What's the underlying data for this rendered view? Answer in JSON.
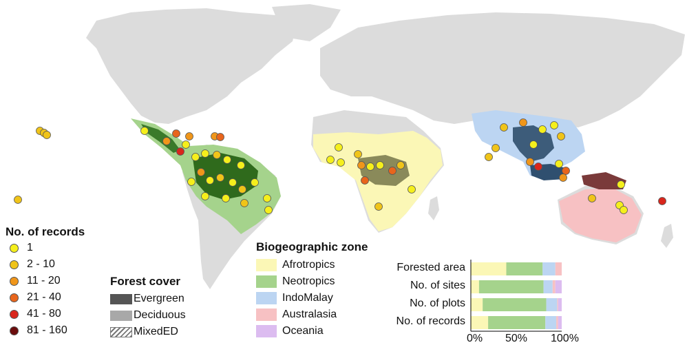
{
  "records_legend": {
    "title": "No. of records",
    "items": [
      {
        "label": "1",
        "color": "#f5ef1c"
      },
      {
        "label": "2 - 10",
        "color": "#f0c419"
      },
      {
        "label": "11 - 20",
        "color": "#f0961a"
      },
      {
        "label": "21 - 40",
        "color": "#e8651c"
      },
      {
        "label": "41 - 80",
        "color": "#d9261c"
      },
      {
        "label": "81 - 160",
        "color": "#6b0d0d"
      }
    ]
  },
  "forest_legend": {
    "title": "Forest cover",
    "items": [
      {
        "label": "Evergreen",
        "color": "#555555"
      },
      {
        "label": "Deciduous",
        "color": "#a8a8a8"
      },
      {
        "label": "MixedED",
        "color": "hatch"
      }
    ]
  },
  "zone_legend": {
    "title": "Biogeographic zone",
    "items": [
      {
        "label": "Afrotropics",
        "color": "#fbf7b6"
      },
      {
        "label": "Neotropics",
        "color": "#a5d38c"
      },
      {
        "label": "IndoMalay",
        "color": "#bcd5f2"
      },
      {
        "label": "Australasia",
        "color": "#f7c1c3"
      },
      {
        "label": "Oceania",
        "color": "#dcbcf0"
      }
    ]
  },
  "chart_data": {
    "type": "bar",
    "orientation": "horizontal-stacked-percent",
    "categories": [
      "Forested area",
      "No. of sites",
      "No. of plots",
      "No. of records"
    ],
    "series": [
      {
        "name": "Afrotropics",
        "values": [
          39,
          9,
          13,
          19
        ]
      },
      {
        "name": "Neotropics",
        "values": [
          40,
          71,
          70,
          63
        ]
      },
      {
        "name": "IndoMalay",
        "values": [
          14,
          10,
          12,
          12
        ]
      },
      {
        "name": "Australasia",
        "values": [
          7,
          3,
          1,
          2
        ]
      },
      {
        "name": "Oceania",
        "values": [
          0,
          7,
          4,
          4
        ]
      }
    ],
    "colors": [
      "#fbf7b6",
      "#a5d38c",
      "#bcd5f2",
      "#f7c1c3",
      "#dcbcf0"
    ],
    "xtick_labels": [
      "0%",
      "50%",
      "100%"
    ],
    "xlim": [
      0,
      100
    ]
  }
}
